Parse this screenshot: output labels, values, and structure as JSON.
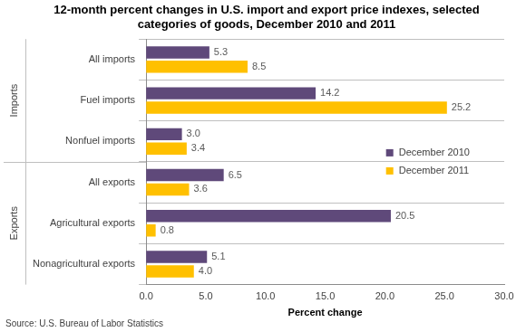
{
  "chart_data": {
    "type": "bar",
    "orientation": "horizontal",
    "title": [
      "12-month percent changes in U.S. import and export price indexes, selected",
      "categories of goods, December 2010 and 2011"
    ],
    "categories": [
      "All imports",
      "Fuel imports",
      "Nonfuel imports",
      "All exports",
      "Agricultural exports",
      "Nonagricultural exports"
    ],
    "series": [
      {
        "name": "December 2010",
        "color": "#5f497a",
        "values": [
          5.3,
          14.2,
          3.0,
          6.5,
          20.5,
          5.1
        ],
        "value_labels": [
          "5.3",
          "14.2",
          "3.0",
          "6.5",
          "20.5",
          "5.1"
        ]
      },
      {
        "name": "December 2011",
        "color": "#ffc000",
        "values": [
          8.5,
          25.2,
          3.4,
          3.6,
          0.8,
          4.0
        ],
        "value_labels": [
          "8.5",
          "25.2",
          "3.4",
          "3.6",
          "0.8",
          "4.0"
        ]
      }
    ],
    "groups": [
      {
        "label": "Imports",
        "categories": [
          "All imports",
          "Fuel imports",
          "Nonfuel imports"
        ]
      },
      {
        "label": "Exports",
        "categories": [
          "All exports",
          "Agricultural exports",
          "Nonagricultural exports"
        ]
      }
    ],
    "xlabel": "Percent change",
    "source": "Source: U.S. Bureau of Labor Statistics",
    "xlim": [
      0,
      30
    ],
    "xticks": [
      {
        "value": 0,
        "label": "0.0"
      },
      {
        "value": 5,
        "label": "5.0"
      },
      {
        "value": 10,
        "label": "10.0"
      },
      {
        "value": 15,
        "label": "15.0"
      },
      {
        "value": 20,
        "label": "20.0"
      },
      {
        "value": 25,
        "label": "25.0"
      },
      {
        "value": 30,
        "label": "30.0"
      }
    ],
    "grid": true,
    "legend": "right",
    "data_labels": true
  }
}
